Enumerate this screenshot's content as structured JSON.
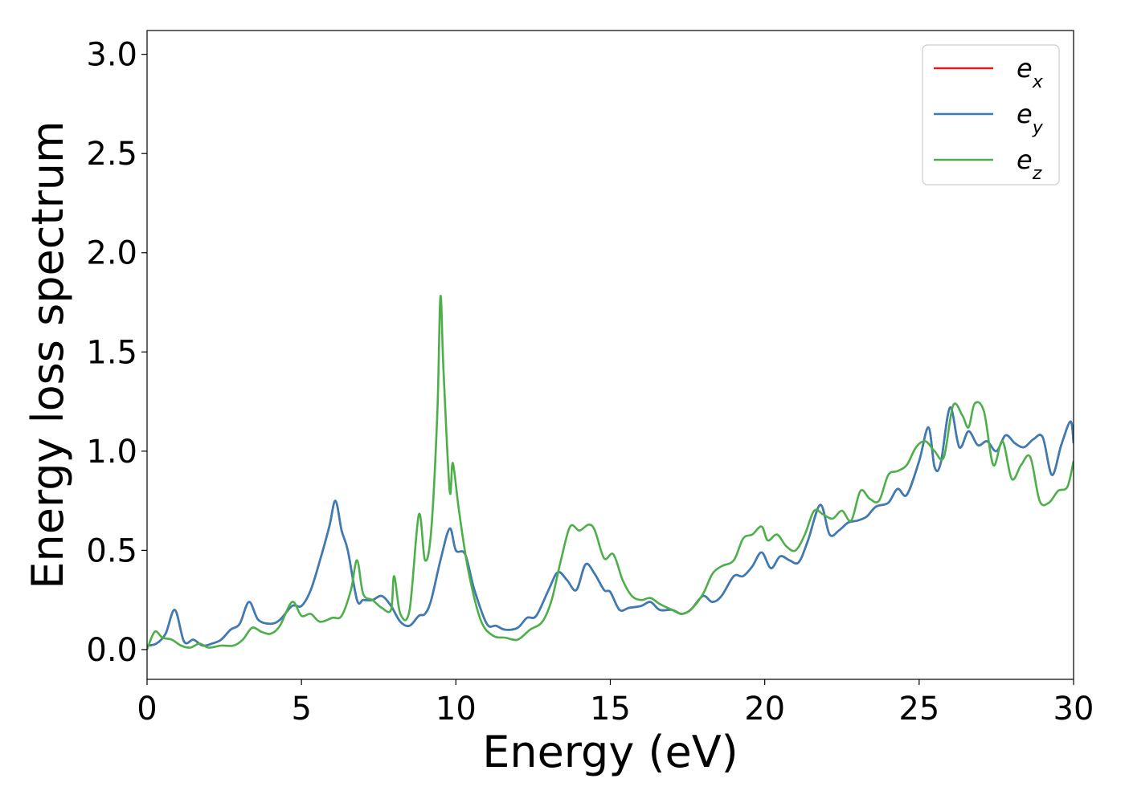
{
  "chart_data": {
    "type": "line",
    "title": "",
    "xlabel": "Energy (eV)",
    "ylabel": "Energy loss spectrum",
    "xlim": [
      0,
      30
    ],
    "ylim": [
      -0.15,
      3.12
    ],
    "xticks": [
      0,
      5,
      10,
      15,
      20,
      25,
      30
    ],
    "xtick_labels": [
      "0",
      "5",
      "10",
      "15",
      "20",
      "25",
      "30"
    ],
    "yticks": [
      0.0,
      0.5,
      1.0,
      1.5,
      2.0,
      2.5,
      3.0
    ],
    "ytick_labels": [
      "0.0",
      "0.5",
      "1.0",
      "1.5",
      "2.0",
      "2.5",
      "3.0"
    ],
    "grid": false,
    "legend_position": "top-right",
    "series": [
      {
        "name": "e",
        "subscript": "x",
        "color": "#e41a1c",
        "x": [
          0,
          0.3,
          0.6,
          0.9,
          1.2,
          1.5,
          1.8,
          2.1,
          2.4,
          2.7,
          3.0,
          3.3,
          3.6,
          4.0,
          4.3,
          4.7,
          5.0,
          5.3,
          5.6,
          5.9,
          6.1,
          6.3,
          6.5,
          6.8,
          7.0,
          7.3,
          7.6,
          7.9,
          8.2,
          8.5,
          8.8,
          9.0,
          9.2,
          9.5,
          9.8,
          10.0,
          10.3,
          10.6,
          11.0,
          11.3,
          11.6,
          12.0,
          12.3,
          12.6,
          13.0,
          13.3,
          13.6,
          13.9,
          14.2,
          14.5,
          14.8,
          15.0,
          15.3,
          15.6,
          16.0,
          16.3,
          16.6,
          17.0,
          17.3,
          17.6,
          18.0,
          18.3,
          18.6,
          19.0,
          19.3,
          19.6,
          19.9,
          20.2,
          20.5,
          20.8,
          21.1,
          21.4,
          21.8,
          22.1,
          22.4,
          22.7,
          23.0,
          23.3,
          23.6,
          24.0,
          24.3,
          24.6,
          25.0,
          25.3,
          25.5,
          25.7,
          26.0,
          26.3,
          26.6,
          26.9,
          27.2,
          27.5,
          27.8,
          28.1,
          28.4,
          28.7,
          29.0,
          29.3,
          29.6,
          29.9,
          30.0
        ],
        "y": [
          0.02,
          0.03,
          0.08,
          0.2,
          0.04,
          0.05,
          0.02,
          0.03,
          0.05,
          0.1,
          0.13,
          0.24,
          0.15,
          0.13,
          0.15,
          0.22,
          0.22,
          0.3,
          0.45,
          0.62,
          0.75,
          0.6,
          0.5,
          0.25,
          0.25,
          0.25,
          0.27,
          0.22,
          0.14,
          0.12,
          0.17,
          0.18,
          0.25,
          0.45,
          0.61,
          0.5,
          0.48,
          0.3,
          0.13,
          0.12,
          0.1,
          0.11,
          0.16,
          0.17,
          0.3,
          0.39,
          0.35,
          0.3,
          0.43,
          0.38,
          0.3,
          0.29,
          0.2,
          0.21,
          0.22,
          0.24,
          0.2,
          0.2,
          0.18,
          0.2,
          0.27,
          0.24,
          0.27,
          0.37,
          0.37,
          0.42,
          0.49,
          0.41,
          0.47,
          0.45,
          0.44,
          0.55,
          0.73,
          0.58,
          0.6,
          0.64,
          0.65,
          0.67,
          0.72,
          0.74,
          0.81,
          0.78,
          0.95,
          1.12,
          0.92,
          0.94,
          1.22,
          1.02,
          1.1,
          1.03,
          1.05,
          1.0,
          1.08,
          1.04,
          1.02,
          1.06,
          1.07,
          0.88,
          1.03,
          1.15,
          1.04
        ]
      },
      {
        "name": "e",
        "subscript": "y",
        "color": "#377eb8",
        "x": [
          0,
          0.3,
          0.6,
          0.9,
          1.2,
          1.5,
          1.8,
          2.1,
          2.4,
          2.7,
          3.0,
          3.3,
          3.6,
          4.0,
          4.3,
          4.7,
          5.0,
          5.3,
          5.6,
          5.9,
          6.1,
          6.3,
          6.5,
          6.8,
          7.0,
          7.3,
          7.6,
          7.9,
          8.2,
          8.5,
          8.8,
          9.0,
          9.2,
          9.5,
          9.8,
          10.0,
          10.3,
          10.6,
          11.0,
          11.3,
          11.6,
          12.0,
          12.3,
          12.6,
          13.0,
          13.3,
          13.6,
          13.9,
          14.2,
          14.5,
          14.8,
          15.0,
          15.3,
          15.6,
          16.0,
          16.3,
          16.6,
          17.0,
          17.3,
          17.6,
          18.0,
          18.3,
          18.6,
          19.0,
          19.3,
          19.6,
          19.9,
          20.2,
          20.5,
          20.8,
          21.1,
          21.4,
          21.8,
          22.1,
          22.4,
          22.7,
          23.0,
          23.3,
          23.6,
          24.0,
          24.3,
          24.6,
          25.0,
          25.3,
          25.5,
          25.7,
          26.0,
          26.3,
          26.6,
          26.9,
          27.2,
          27.5,
          27.8,
          28.1,
          28.4,
          28.7,
          29.0,
          29.3,
          29.6,
          29.9,
          30.0
        ],
        "y": [
          0.02,
          0.03,
          0.08,
          0.2,
          0.04,
          0.05,
          0.02,
          0.03,
          0.05,
          0.1,
          0.13,
          0.24,
          0.15,
          0.13,
          0.15,
          0.22,
          0.22,
          0.3,
          0.45,
          0.62,
          0.75,
          0.6,
          0.5,
          0.25,
          0.25,
          0.25,
          0.27,
          0.22,
          0.14,
          0.12,
          0.17,
          0.18,
          0.25,
          0.45,
          0.61,
          0.5,
          0.48,
          0.3,
          0.13,
          0.12,
          0.1,
          0.11,
          0.16,
          0.17,
          0.3,
          0.39,
          0.35,
          0.3,
          0.43,
          0.38,
          0.3,
          0.29,
          0.2,
          0.21,
          0.22,
          0.24,
          0.2,
          0.2,
          0.18,
          0.2,
          0.27,
          0.24,
          0.27,
          0.37,
          0.37,
          0.42,
          0.49,
          0.41,
          0.47,
          0.45,
          0.44,
          0.55,
          0.73,
          0.58,
          0.6,
          0.64,
          0.65,
          0.67,
          0.72,
          0.74,
          0.81,
          0.78,
          0.95,
          1.12,
          0.92,
          0.94,
          1.22,
          1.02,
          1.1,
          1.03,
          1.05,
          1.0,
          1.08,
          1.04,
          1.02,
          1.06,
          1.07,
          0.88,
          1.03,
          1.15,
          1.04
        ]
      },
      {
        "name": "e",
        "subscript": "z",
        "color": "#4daf4a",
        "x": [
          0,
          0.25,
          0.5,
          0.8,
          1.1,
          1.4,
          1.7,
          2.0,
          2.4,
          2.8,
          3.1,
          3.4,
          3.7,
          4.0,
          4.3,
          4.7,
          5.0,
          5.3,
          5.6,
          6.0,
          6.3,
          6.6,
          6.8,
          7.0,
          7.3,
          7.6,
          7.9,
          8.0,
          8.2,
          8.5,
          8.8,
          9.0,
          9.2,
          9.4,
          9.5,
          9.6,
          9.8,
          9.9,
          10.1,
          10.4,
          10.8,
          11.2,
          11.6,
          12.0,
          12.4,
          12.8,
          13.1,
          13.4,
          13.7,
          14.0,
          14.3,
          14.5,
          14.8,
          15.1,
          15.4,
          15.7,
          16.0,
          16.3,
          16.6,
          17.0,
          17.3,
          17.6,
          18.0,
          18.3,
          18.6,
          19.0,
          19.3,
          19.6,
          19.9,
          20.1,
          20.4,
          20.7,
          21.0,
          21.3,
          21.6,
          21.9,
          22.2,
          22.5,
          22.8,
          23.1,
          23.4,
          23.7,
          24.0,
          24.3,
          24.6,
          24.9,
          25.2,
          25.5,
          25.8,
          26.1,
          26.4,
          26.6,
          26.8,
          27.1,
          27.4,
          27.7,
          28.0,
          28.3,
          28.6,
          28.9,
          29.2,
          29.5,
          29.8,
          30.0
        ],
        "y": [
          0.0,
          0.09,
          0.06,
          0.05,
          0.02,
          0.01,
          0.03,
          0.01,
          0.02,
          0.02,
          0.05,
          0.11,
          0.09,
          0.08,
          0.12,
          0.24,
          0.17,
          0.18,
          0.14,
          0.16,
          0.17,
          0.3,
          0.45,
          0.28,
          0.25,
          0.21,
          0.2,
          0.37,
          0.18,
          0.2,
          0.68,
          0.45,
          0.6,
          1.2,
          1.78,
          1.4,
          0.8,
          0.94,
          0.7,
          0.4,
          0.15,
          0.07,
          0.06,
          0.05,
          0.1,
          0.14,
          0.25,
          0.45,
          0.62,
          0.6,
          0.63,
          0.6,
          0.46,
          0.48,
          0.35,
          0.27,
          0.25,
          0.26,
          0.23,
          0.2,
          0.18,
          0.2,
          0.28,
          0.38,
          0.42,
          0.45,
          0.56,
          0.58,
          0.62,
          0.55,
          0.58,
          0.52,
          0.5,
          0.58,
          0.7,
          0.68,
          0.66,
          0.7,
          0.65,
          0.8,
          0.76,
          0.75,
          0.88,
          0.9,
          0.93,
          1.02,
          1.05,
          1.0,
          0.97,
          1.23,
          1.18,
          1.12,
          1.24,
          1.2,
          0.93,
          1.05,
          0.86,
          0.93,
          0.97,
          0.75,
          0.74,
          0.8,
          0.82,
          0.95
        ]
      }
    ]
  },
  "colors": {
    "axis": "#000000",
    "legend_border": "#cccccc",
    "background": "#ffffff"
  }
}
